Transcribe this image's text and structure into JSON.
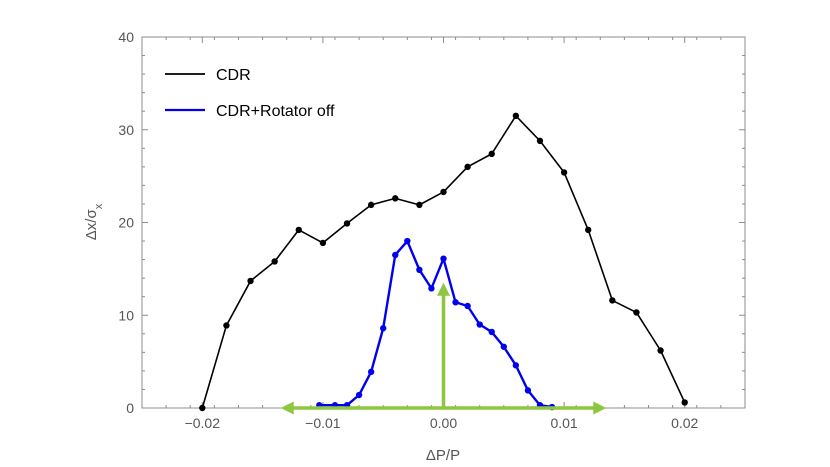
{
  "chart_data": {
    "type": "line",
    "xlabel": "ΔP/P",
    "ylabel": "Δx/σx",
    "xlim": [
      -0.025,
      0.025
    ],
    "ylim": [
      0,
      40
    ],
    "x_ticks": [
      -0.02,
      -0.01,
      0.0,
      0.01,
      0.02
    ],
    "x_tick_labels": [
      "−0.02",
      "−0.01",
      "0.00",
      "0.01",
      "0.02"
    ],
    "y_ticks": [
      0,
      10,
      20,
      30,
      40
    ],
    "y_tick_labels": [
      "0",
      "10",
      "20",
      "30",
      "40"
    ],
    "legend_position": "top-left",
    "grid": false,
    "series": [
      {
        "name": "CDR",
        "color": "#000000",
        "points": [
          [
            -0.02,
            0.0
          ],
          [
            -0.018,
            8.9
          ],
          [
            -0.016,
            13.7
          ],
          [
            -0.014,
            15.8
          ],
          [
            -0.012,
            19.2
          ],
          [
            -0.01,
            17.8
          ],
          [
            -0.008,
            19.9
          ],
          [
            -0.006,
            21.9
          ],
          [
            -0.004,
            22.6
          ],
          [
            -0.002,
            21.9
          ],
          [
            0.0,
            23.3
          ],
          [
            0.002,
            26.0
          ],
          [
            0.004,
            27.4
          ],
          [
            0.006,
            31.5
          ],
          [
            0.008,
            28.8
          ],
          [
            0.01,
            25.4
          ],
          [
            0.012,
            19.2
          ],
          [
            0.014,
            11.6
          ],
          [
            0.016,
            10.3
          ],
          [
            0.018,
            6.2
          ],
          [
            0.02,
            0.6
          ]
        ]
      },
      {
        "name": "CDR+Rotator off",
        "color": "#0000ee",
        "points": [
          [
            -0.0103,
            0.3
          ],
          [
            -0.009,
            0.3
          ],
          [
            -0.008,
            0.3
          ],
          [
            -0.007,
            1.4
          ],
          [
            -0.006,
            3.9
          ],
          [
            -0.005,
            8.6
          ],
          [
            -0.004,
            16.5
          ],
          [
            -0.003,
            18.0
          ],
          [
            -0.002,
            14.9
          ],
          [
            -0.001,
            12.9
          ],
          [
            0.0,
            16.1
          ],
          [
            0.001,
            11.4
          ],
          [
            0.002,
            11.0
          ],
          [
            0.003,
            9.0
          ],
          [
            0.004,
            8.2
          ],
          [
            0.005,
            6.6
          ],
          [
            0.006,
            4.6
          ],
          [
            0.007,
            1.9
          ],
          [
            0.008,
            0.3
          ],
          [
            0.009,
            0.1
          ]
        ]
      }
    ],
    "annotations": {
      "color": "#8dc63f",
      "horizontal_arrow": {
        "x_from": -0.0135,
        "x_to": 0.0135,
        "y": 0
      },
      "vertical_arrow": {
        "x": 0.0,
        "y_from": 0,
        "y_to": 13.5
      }
    }
  }
}
